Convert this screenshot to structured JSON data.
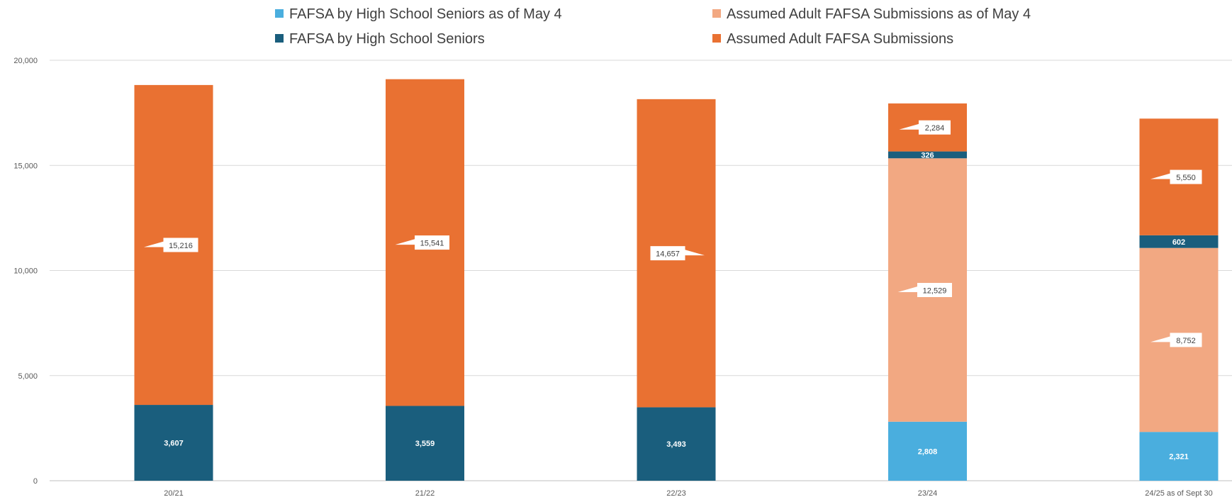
{
  "colors": {
    "hs_may": "#4AAEDE",
    "hs": "#1A5E7D",
    "adult_may": "#F2A882",
    "adult": "#E97132",
    "grid": "#D9D9D9",
    "axis": "#BFBFBF"
  },
  "legend": [
    {
      "key": "hs_may",
      "label": "FAFSA by High School Seniors as of May 4"
    },
    {
      "key": "hs",
      "label": "FAFSA by High School Seniors"
    },
    {
      "key": "adult_may",
      "label": "Assumed Adult FAFSA Submissions as of May 4"
    },
    {
      "key": "adult",
      "label": "Assumed Adult FAFSA Submissions"
    }
  ],
  "chart_data": {
    "type": "bar",
    "stacked": true,
    "categories": [
      "20/21",
      "21/22",
      "22/23",
      "23/24",
      "24/25 as of Sept 30"
    ],
    "series": [
      {
        "key": "hs_may",
        "name": "FAFSA by High School Seniors as of May 4",
        "values": [
          null,
          null,
          null,
          2808,
          2321
        ],
        "labels": [
          "",
          "",
          "",
          "2,808",
          "2,321"
        ]
      },
      {
        "key": "adult_may",
        "name": "Assumed Adult FAFSA Submissions as of May 4",
        "values": [
          null,
          null,
          null,
          12529,
          8752
        ],
        "labels": [
          "",
          "",
          "",
          "12,529",
          "8,752"
        ]
      },
      {
        "key": "hs",
        "name": "FAFSA by High School Seniors",
        "values": [
          3607,
          3559,
          3493,
          326,
          602
        ],
        "labels": [
          "3,607",
          "3,559",
          "3,493",
          "326",
          "602"
        ]
      },
      {
        "key": "adult",
        "name": "Assumed Adult FAFSA Submissions",
        "values": [
          15216,
          15541,
          14657,
          2284,
          5550
        ],
        "labels": [
          "15,216",
          "15,541",
          "14,657",
          "2,284",
          "5,550"
        ]
      }
    ],
    "stack_order": [
      "hs_may",
      "adult_may",
      "hs",
      "adult"
    ],
    "ylim": [
      0,
      20000
    ],
    "yticks": [
      0,
      5000,
      10000,
      15000,
      20000
    ],
    "ytick_labels": [
      "0",
      "5,000",
      "10,000",
      "15,000",
      "20,000"
    ],
    "legend_position": "top",
    "grid": true
  }
}
